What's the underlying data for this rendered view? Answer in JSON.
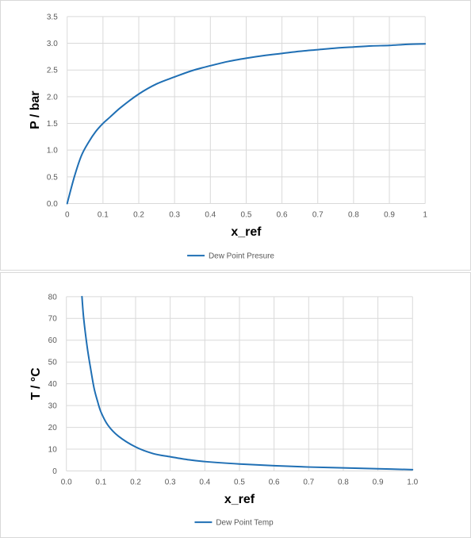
{
  "colors": {
    "series": "#1f6fb4",
    "grid": "#d9d9d9",
    "tick_text": "#595959",
    "axis_title": "#000000",
    "panel_border": "#d9d9d9"
  },
  "chart_data": [
    {
      "type": "line",
      "title": "",
      "xlabel": "x_ref",
      "ylabel": "P / bar",
      "xlim": [
        0,
        1
      ],
      "ylim": [
        0,
        3.5
      ],
      "x_ticks": [
        "0",
        "0.1",
        "0.2",
        "0.3",
        "0.4",
        "0.5",
        "0.6",
        "0.7",
        "0.8",
        "0.9",
        "1"
      ],
      "y_ticks": [
        "0.0",
        "0.5",
        "1.0",
        "1.5",
        "2.0",
        "2.5",
        "3.0",
        "3.5"
      ],
      "grid": "vertical and horizontal",
      "legend_position": "bottom",
      "series": [
        {
          "name": "Dew Point Presure",
          "x": [
            0,
            0.02,
            0.04,
            0.06,
            0.08,
            0.1,
            0.12,
            0.15,
            0.2,
            0.25,
            0.3,
            0.35,
            0.4,
            0.45,
            0.5,
            0.55,
            0.6,
            0.65,
            0.7,
            0.75,
            0.8,
            0.85,
            0.9,
            0.95,
            1.0
          ],
          "y": [
            0,
            0.5,
            0.9,
            1.15,
            1.35,
            1.5,
            1.62,
            1.8,
            2.05,
            2.24,
            2.37,
            2.49,
            2.58,
            2.66,
            2.72,
            2.77,
            2.81,
            2.85,
            2.88,
            2.91,
            2.93,
            2.95,
            2.96,
            2.98,
            2.99
          ]
        }
      ]
    },
    {
      "type": "line",
      "title": "",
      "xlabel": "x_ref",
      "ylabel": "T / °C",
      "xlim": [
        0,
        1
      ],
      "ylim": [
        0,
        80
      ],
      "x_ticks": [
        "0.0",
        "0.1",
        "0.2",
        "0.3",
        "0.4",
        "0.5",
        "0.6",
        "0.7",
        "0.8",
        "0.9",
        "1.0"
      ],
      "y_ticks": [
        "0",
        "10",
        "20",
        "30",
        "40",
        "50",
        "60",
        "70",
        "80"
      ],
      "grid": "vertical and horizontal",
      "legend_position": "bottom",
      "series": [
        {
          "name": "Dew Point Temp",
          "x": [
            0.045,
            0.05,
            0.06,
            0.07,
            0.08,
            0.09,
            0.1,
            0.12,
            0.15,
            0.2,
            0.25,
            0.3,
            0.35,
            0.4,
            0.5,
            0.6,
            0.7,
            0.8,
            0.9,
            1.0
          ],
          "y": [
            80,
            70,
            57,
            47,
            38,
            32,
            27,
            21,
            16,
            11,
            8,
            6.5,
            5.2,
            4.3,
            3.2,
            2.4,
            1.8,
            1.4,
            1.0,
            0.6
          ]
        }
      ]
    }
  ]
}
